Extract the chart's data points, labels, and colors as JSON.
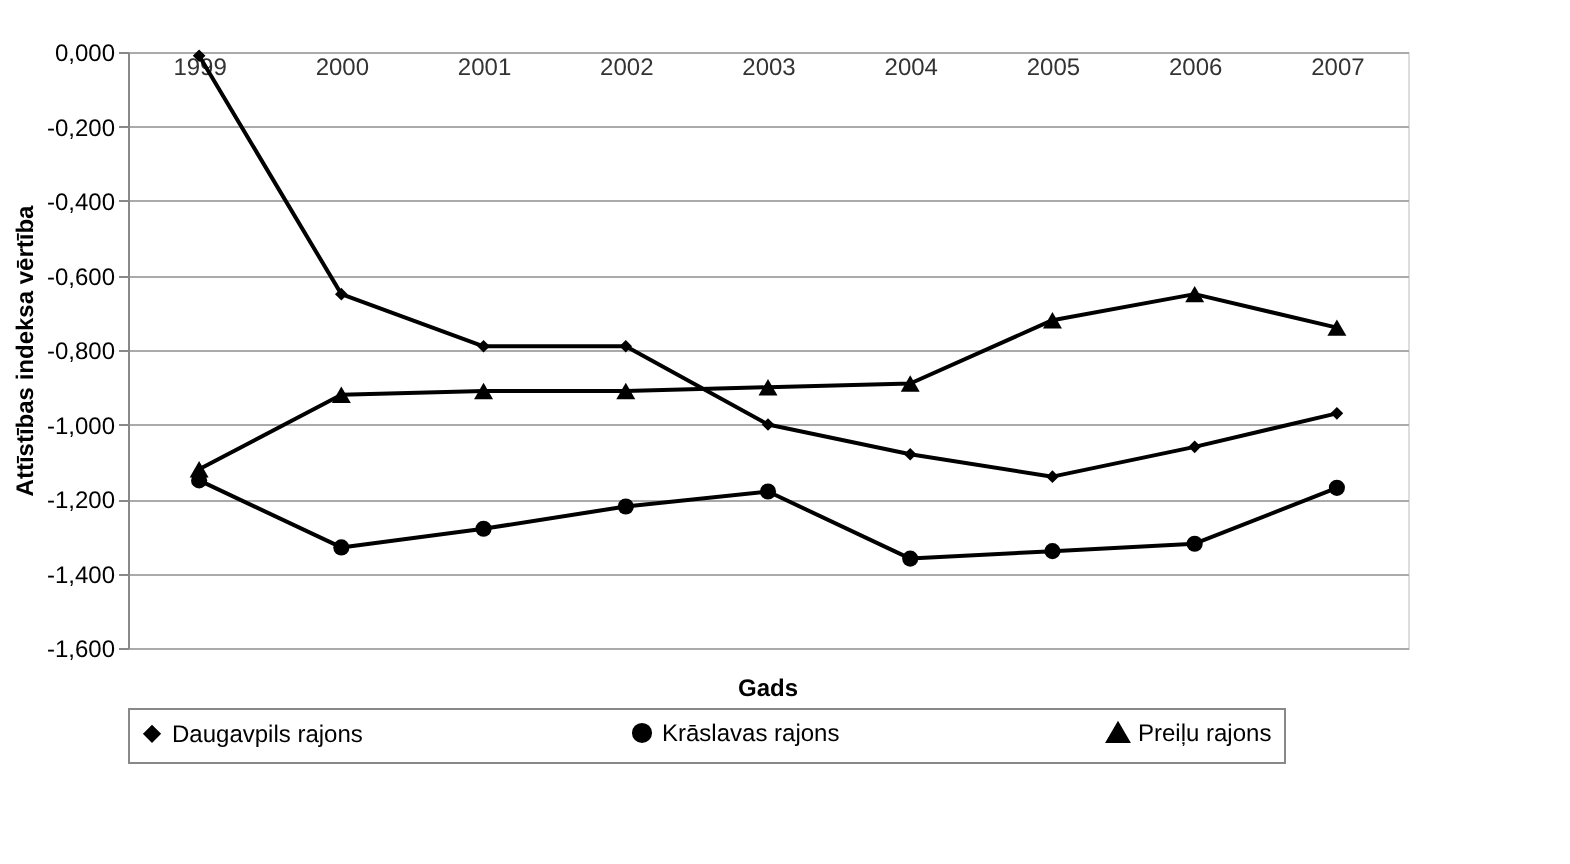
{
  "chart_data": {
    "type": "line",
    "xlabel": "Gads",
    "ylabel": "Attīstības indeksa vērtība",
    "categories": [
      "1999",
      "2000",
      "2001",
      "2002",
      "2003",
      "2004",
      "2005",
      "2006",
      "2007"
    ],
    "series": [
      {
        "name": "Daugavpils rajons",
        "color": "#000000",
        "marker": "diamond",
        "values": [
          -0.01,
          -0.65,
          -0.79,
          -0.79,
          -1.0,
          -1.08,
          -1.14,
          -1.06,
          -0.97
        ]
      },
      {
        "name": "Krāslavas rajons",
        "color": "#000000",
        "marker": "circle",
        "values": [
          -1.15,
          -1.33,
          -1.28,
          -1.22,
          -1.18,
          -1.36,
          -1.34,
          -1.32,
          -1.17
        ]
      },
      {
        "name": "Preiļu rajons",
        "color": "#000000",
        "marker": "triangle",
        "values": [
          -1.12,
          -0.92,
          -0.91,
          -0.91,
          -0.9,
          -0.89,
          -0.72,
          -0.65,
          -0.74
        ]
      }
    ],
    "ylim": [
      -1.6,
      0
    ],
    "yticks": [
      {
        "value": 0,
        "label": "0,000"
      },
      {
        "value": -0.2,
        "label": "-0,200"
      },
      {
        "value": -0.4,
        "label": "-0,400"
      },
      {
        "value": -0.6,
        "label": "-0,600"
      },
      {
        "value": -0.8,
        "label": "-0,800"
      },
      {
        "value": -1.0,
        "label": "-1,000"
      },
      {
        "value": -1.2,
        "label": "-1,200"
      },
      {
        "value": -1.4,
        "label": "-1,400"
      },
      {
        "value": -1.6,
        "label": "-1,600"
      }
    ],
    "grid": "y",
    "legend": "bottom",
    "line_style": "solid"
  }
}
